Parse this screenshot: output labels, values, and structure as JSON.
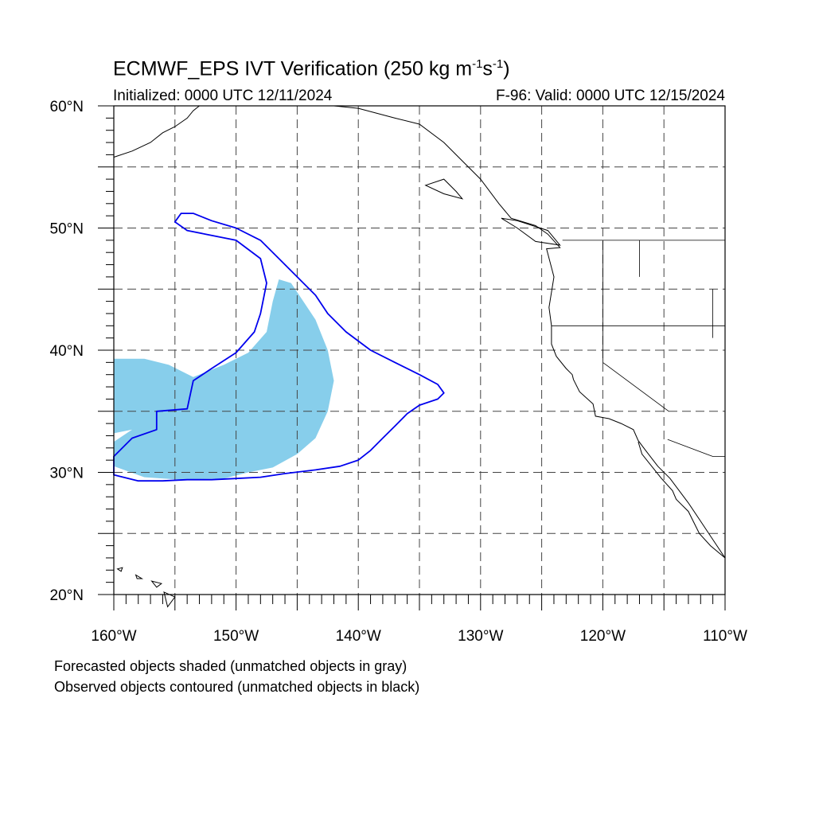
{
  "title": {
    "main": "ECMWF_EPS IVT Verification (250 kg m",
    "sup1": "-1",
    "mid": "s",
    "sup2": "-1",
    "end": ")"
  },
  "init": "Initialized: 0000 UTC 12/11/2024",
  "valid": "F-96: Valid: 0000 UTC 12/15/2024",
  "lat_labels": [
    "60°N",
    "50°N",
    "40°N",
    "30°N",
    "20°N"
  ],
  "lon_labels": [
    "160°W",
    "150°W",
    "140°W",
    "130°W",
    "120°W",
    "110°W"
  ],
  "footnote1": "Forecasted objects shaded (unmatched objects in gray)",
  "footnote2": "Observed objects contoured (unmatched objects in black)",
  "map": {
    "lon_range": [
      -160,
      -110
    ],
    "lat_range": [
      20,
      60
    ],
    "grid_interval_deg": 5,
    "grid_style": "dashed",
    "colors": {
      "forecast_fill": "#87CEEB",
      "observed_contour": "#0000EE",
      "coastline": "#000000"
    },
    "forecast_object_lonlat": [
      [
        -160,
        39.3
      ],
      [
        -157.5,
        39.3
      ],
      [
        -155.5,
        38.8
      ],
      [
        -153.5,
        37.8
      ],
      [
        -151,
        38.8
      ],
      [
        -149,
        39.8
      ],
      [
        -147.5,
        41.5
      ],
      [
        -147,
        44
      ],
      [
        -146.5,
        45.8
      ],
      [
        -145.5,
        45.5
      ],
      [
        -144.5,
        44
      ],
      [
        -143.5,
        42.5
      ],
      [
        -142.5,
        40
      ],
      [
        -142,
        37.5
      ],
      [
        -142.5,
        35
      ],
      [
        -143.5,
        32.8
      ],
      [
        -145,
        31.5
      ],
      [
        -147,
        30.4
      ],
      [
        -149,
        30
      ],
      [
        -151,
        29.5
      ],
      [
        -154.5,
        29.4
      ],
      [
        -157.5,
        29.6
      ],
      [
        -160,
        30.5
      ],
      [
        -160,
        32.5
      ],
      [
        -158.5,
        33.5
      ],
      [
        -160,
        33.2
      ]
    ],
    "observed_object_lonlat": [
      [
        -154.5,
        51.2
      ],
      [
        -153.5,
        51.2
      ],
      [
        -152,
        50.6
      ],
      [
        -150,
        50
      ],
      [
        -148,
        49
      ],
      [
        -146.5,
        47.5
      ],
      [
        -145,
        46
      ],
      [
        -143.5,
        44.5
      ],
      [
        -142.5,
        43
      ],
      [
        -141,
        41.5
      ],
      [
        -139,
        40
      ],
      [
        -137,
        39
      ],
      [
        -135,
        38
      ],
      [
        -133.5,
        37.2
      ],
      [
        -133,
        36.5
      ],
      [
        -133.5,
        36
      ],
      [
        -135,
        35.5
      ],
      [
        -136,
        34.8
      ],
      [
        -137,
        33.8
      ],
      [
        -138,
        32.8
      ],
      [
        -139,
        31.8
      ],
      [
        -140,
        31
      ],
      [
        -141.5,
        30.5
      ],
      [
        -143.5,
        30.2
      ],
      [
        -146,
        29.9
      ],
      [
        -148,
        29.6
      ],
      [
        -150,
        29.5
      ],
      [
        -152,
        29.4
      ],
      [
        -154,
        29.4
      ],
      [
        -156,
        29.3
      ],
      [
        -158,
        29.3
      ],
      [
        -160,
        29.8
      ],
      [
        -160,
        31.3
      ],
      [
        -158.5,
        32.8
      ],
      [
        -156.5,
        33.5
      ],
      [
        -156.5,
        35
      ],
      [
        -154,
        35.2
      ],
      [
        -153.5,
        37.5
      ],
      [
        -152,
        38.5
      ],
      [
        -150,
        39.8
      ],
      [
        -148.5,
        41.5
      ],
      [
        -148,
        43
      ],
      [
        -147.5,
        45.5
      ],
      [
        -148,
        47.5
      ],
      [
        -150,
        49
      ],
      [
        -152.5,
        49.5
      ],
      [
        -154,
        49.8
      ],
      [
        -155,
        50.5
      ]
    ],
    "coast_na_lonlat": [
      [
        -110,
        23
      ],
      [
        -111,
        24.5
      ],
      [
        -112,
        26
      ],
      [
        -113,
        27.5
      ],
      [
        -114.5,
        29.5
      ],
      [
        -115.5,
        30.5
      ],
      [
        -116.5,
        31.8
      ],
      [
        -117.1,
        32.6
      ],
      [
        -117.5,
        33.5
      ],
      [
        -118.5,
        34
      ],
      [
        -119.5,
        34.4
      ],
      [
        -120.6,
        34.6
      ],
      [
        -120.8,
        35.6
      ],
      [
        -121.9,
        36.6
      ],
      [
        -122.4,
        37.6
      ],
      [
        -122.5,
        38
      ],
      [
        -123,
        38.5
      ],
      [
        -123.8,
        39.5
      ],
      [
        -124.2,
        40.5
      ],
      [
        -124.2,
        42
      ],
      [
        -124.4,
        43.5
      ],
      [
        -124,
        46
      ],
      [
        -124.6,
        48.3
      ],
      [
        -123.5,
        48.4
      ],
      [
        -124.5,
        49.5
      ],
      [
        -125.5,
        50.2
      ],
      [
        -127.5,
        50.8
      ],
      [
        -128.5,
        52
      ],
      [
        -130,
        54
      ],
      [
        -131.5,
        55.5
      ],
      [
        -133,
        57
      ],
      [
        -135,
        58.5
      ],
      [
        -137,
        59
      ],
      [
        -140,
        59.8
      ],
      [
        -142,
        60
      ]
    ],
    "coast_baja_lonlat": [
      [
        -117.1,
        32.5
      ],
      [
        -116.8,
        31.5
      ],
      [
        -116,
        30.5
      ],
      [
        -115.2,
        29.5
      ],
      [
        -114.3,
        28.5
      ],
      [
        -114,
        27.8
      ],
      [
        -113,
        26.8
      ],
      [
        -112.1,
        25
      ],
      [
        -111.2,
        24
      ],
      [
        -110,
        23
      ]
    ],
    "coast_ne_asia_lonlat": [
      [
        -160,
        55.8
      ],
      [
        -158.5,
        56.3
      ],
      [
        -157,
        57
      ],
      [
        -156,
        57.8
      ],
      [
        -155,
        58.3
      ],
      [
        -154,
        59
      ],
      [
        -153.5,
        59.6
      ],
      [
        -153,
        60
      ]
    ],
    "borders_lonlat": [
      [
        [
          -123.3,
          49
        ],
        [
          -110,
          49
        ]
      ],
      [
        [
          -124.2,
          42
        ],
        [
          -110,
          42
        ]
      ],
      [
        [
          -120,
          49
        ],
        [
          -120,
          39
        ],
        [
          -114.6,
          35
        ]
      ],
      [
        [
          -114.7,
          32.7
        ],
        [
          -111,
          31.3
        ],
        [
          -110,
          31.3
        ]
      ],
      [
        [
          -117,
          49
        ],
        [
          -117,
          46
        ]
      ],
      [
        [
          -111,
          45
        ],
        [
          -111,
          41
        ]
      ]
    ],
    "islands_lonlat": [
      [
        [
          -159.7,
          22.1
        ],
        [
          -159.3,
          22.2
        ],
        [
          -159.4,
          21.9
        ],
        [
          -159.7,
          22.1
        ]
      ],
      [
        [
          -158.2,
          21.6
        ],
        [
          -157.7,
          21.3
        ],
        [
          -158.1,
          21.3
        ],
        [
          -158.2,
          21.6
        ]
      ],
      [
        [
          -156.9,
          21.1
        ],
        [
          -156.1,
          20.9
        ],
        [
          -156.5,
          20.6
        ],
        [
          -156.9,
          21.1
        ]
      ],
      [
        [
          -155.9,
          20.2
        ],
        [
          -155,
          19.8
        ],
        [
          -155.6,
          19
        ],
        [
          -155.9,
          20.2
        ]
      ],
      [
        [
          -134.5,
          53.5
        ],
        [
          -133,
          54
        ],
        [
          -132,
          53
        ],
        [
          -131.5,
          52.4
        ],
        [
          -133,
          52.8
        ],
        [
          -134.5,
          53.5
        ]
      ],
      [
        [
          -124.5,
          49.8
        ],
        [
          -123.5,
          48.6
        ],
        [
          -125.5,
          48.9
        ],
        [
          -127,
          50
        ],
        [
          -128.3,
          50.8
        ],
        [
          -127,
          50.6
        ],
        [
          -124.5,
          49.8
        ]
      ]
    ]
  }
}
